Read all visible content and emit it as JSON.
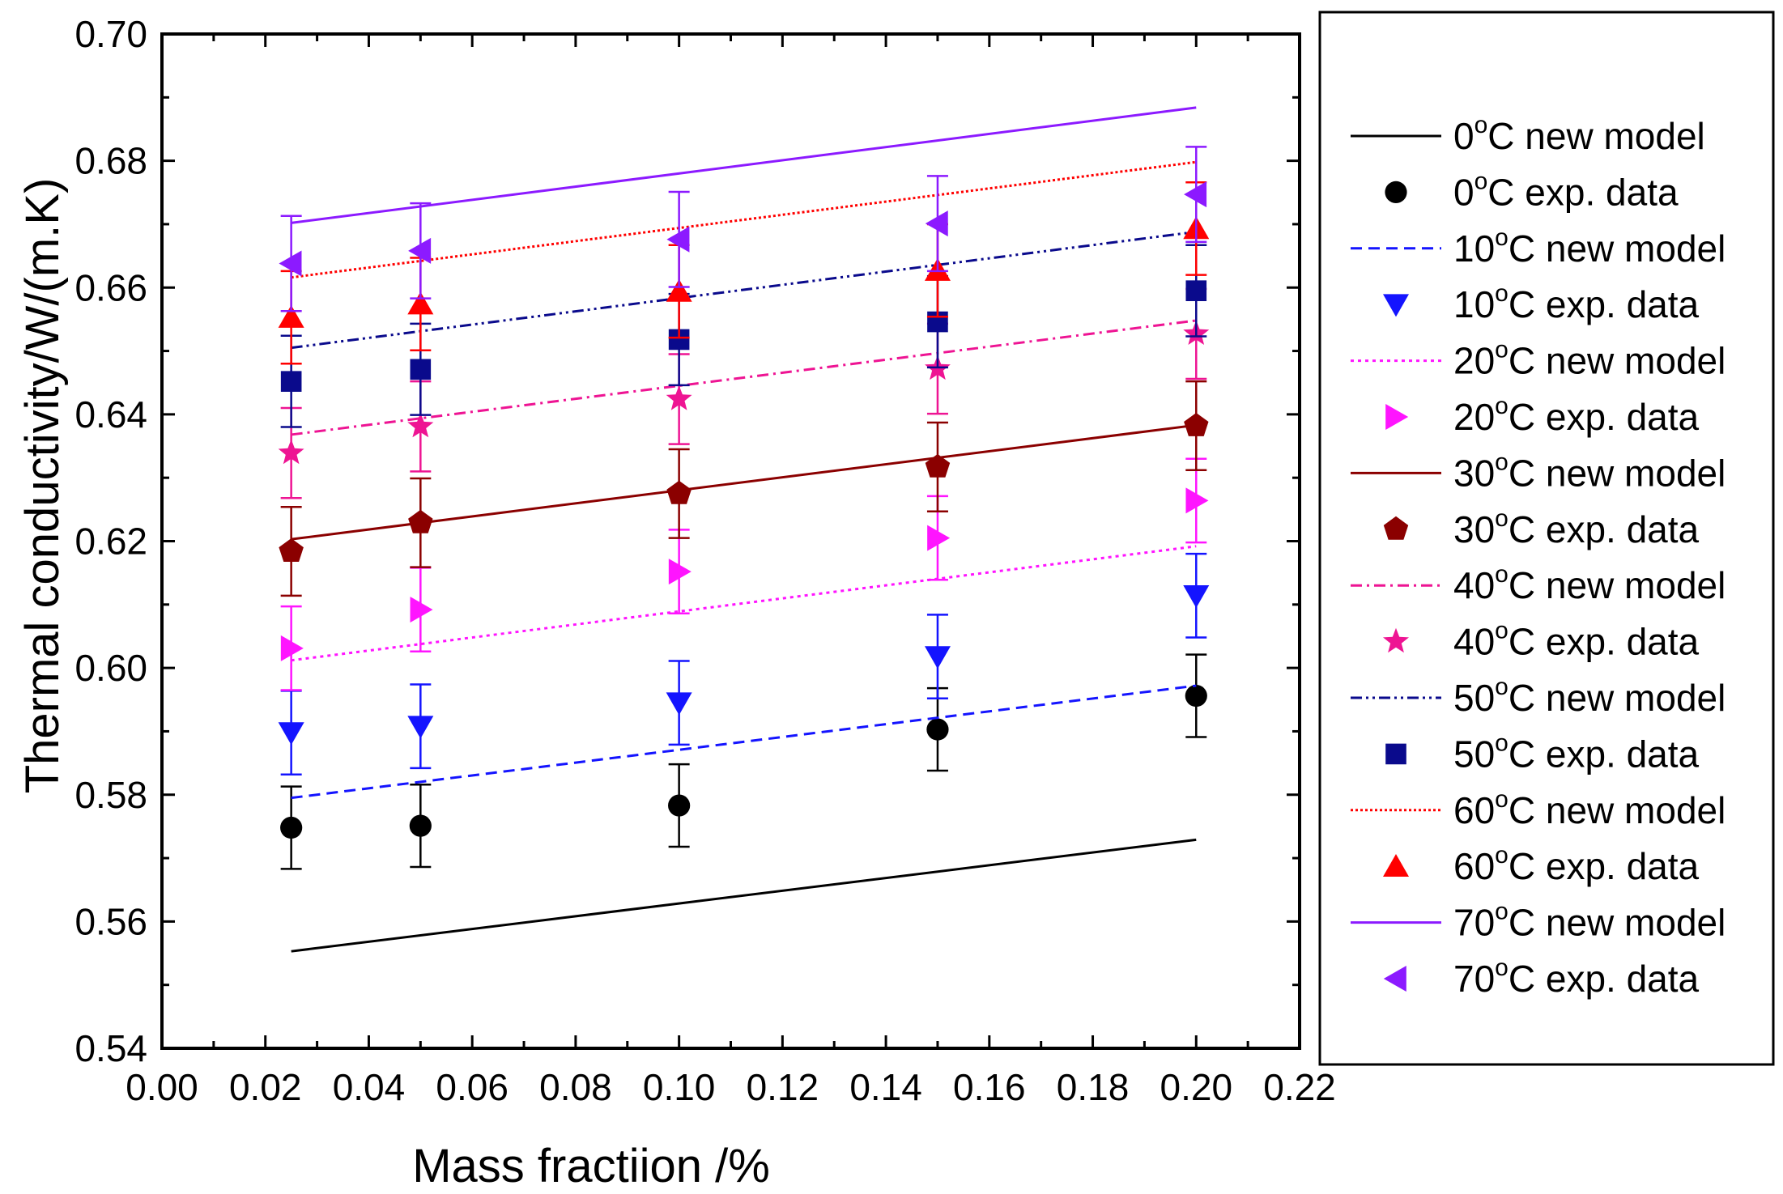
{
  "chart_data": {
    "type": "line+scatter",
    "title": "",
    "xlabel": "Mass fractiion /%",
    "ylabel": "Thermal conductivity/W/(m.K)",
    "xlim": [
      0.0,
      0.22
    ],
    "ylim": [
      0.54,
      0.7
    ],
    "xticks": [
      0.0,
      0.02,
      0.04,
      0.06,
      0.08,
      0.1,
      0.12,
      0.14,
      0.16,
      0.18,
      0.2,
      0.22
    ],
    "yticks": [
      0.54,
      0.56,
      0.58,
      0.6,
      0.62,
      0.64,
      0.66,
      0.68,
      0.7
    ],
    "xtick_labels": [
      "0.00",
      "0.02",
      "0.04",
      "0.06",
      "0.08",
      "0.10",
      "0.12",
      "0.14",
      "0.16",
      "0.18",
      "0.20",
      "0.22"
    ],
    "ytick_labels": [
      "0.54",
      "0.56",
      "0.58",
      "0.60",
      "0.62",
      "0.64",
      "0.66",
      "0.68",
      "0.70"
    ],
    "legend_position": "right, outside plot",
    "x": [
      0.025,
      0.05,
      0.1,
      0.15,
      0.2
    ],
    "series": [
      {
        "temp": "0",
        "color": "#000000",
        "marker": "circle",
        "dash": "solid",
        "model_line": [
          0.5553,
          0.5729
        ],
        "exp": [
          0.5748,
          0.5751,
          0.5783,
          0.5903,
          0.5956
        ],
        "err": 0.0065
      },
      {
        "temp": "10",
        "color": "#1414ff",
        "marker": "triangle-down",
        "dash": "dashed",
        "model_line": [
          0.5795,
          0.5972
        ],
        "exp": [
          0.5898,
          0.5908,
          0.5945,
          0.6018,
          0.6114
        ],
        "err": 0.0066
      },
      {
        "temp": "20",
        "color": "#ff14ff",
        "marker": "triangle-right",
        "dash": "dotted",
        "model_line": [
          0.6012,
          0.6192
        ],
        "exp": [
          0.6031,
          0.6092,
          0.6152,
          0.6205,
          0.6264
        ],
        "err": 0.0066
      },
      {
        "temp": "30",
        "color": "#8b0000",
        "marker": "pentagon",
        "dash": "solid",
        "model_line": [
          0.6203,
          0.6383
        ],
        "exp": [
          0.6184,
          0.6229,
          0.6275,
          0.6317,
          0.6382
        ],
        "err": 0.007
      },
      {
        "temp": "40",
        "color": "#ee1493",
        "marker": "star",
        "dash": "dashdot",
        "model_line": [
          0.6368,
          0.6548
        ],
        "exp": [
          0.6339,
          0.6381,
          0.6424,
          0.6472,
          0.6527
        ],
        "err": 0.0071
      },
      {
        "temp": "50",
        "color": "#0a0a8c",
        "marker": "square",
        "dash": "dashdotdot",
        "model_line": [
          0.6505,
          0.6688
        ],
        "exp": [
          0.6452,
          0.6471,
          0.6518,
          0.6546,
          0.6595
        ],
        "err": 0.0072
      },
      {
        "temp": "60",
        "color": "#ff0000",
        "marker": "triangle-up",
        "dash": "dense-dotted",
        "model_line": [
          0.6616,
          0.6798
        ],
        "exp": [
          0.6553,
          0.6574,
          0.6594,
          0.6627,
          0.6693
        ],
        "err": 0.0073
      },
      {
        "temp": "70",
        "color": "#8c1aff",
        "marker": "triangle-left",
        "dash": "solid",
        "model_line": [
          0.6702,
          0.6884
        ],
        "exp": [
          0.6638,
          0.6658,
          0.6676,
          0.6701,
          0.6747
        ],
        "err": 0.0075
      }
    ]
  },
  "legend": {
    "entries": [
      {
        "temp": "0",
        "sup": "o",
        "unit": "C",
        "desc": " new model",
        "kind": "line",
        "series": 0
      },
      {
        "temp": "0",
        "sup": "o",
        "unit": "C",
        "desc": " exp. data",
        "kind": "marker",
        "series": 0
      },
      {
        "temp": "10",
        "sup": "o",
        "unit": "C",
        "desc": " new model",
        "kind": "line",
        "series": 1
      },
      {
        "temp": "10",
        "sup": "o",
        "unit": "C",
        "desc": " exp. data",
        "kind": "marker",
        "series": 1
      },
      {
        "temp": "20",
        "sup": "o",
        "unit": "C",
        "desc": " new model",
        "kind": "line",
        "series": 2
      },
      {
        "temp": "20",
        "sup": "o",
        "unit": "C",
        "desc": " exp. data",
        "kind": "marker",
        "series": 2
      },
      {
        "temp": "30",
        "sup": "o",
        "unit": "C",
        "desc": " new model",
        "kind": "line",
        "series": 3
      },
      {
        "temp": "30",
        "sup": "o",
        "unit": "C",
        "desc": " exp. data",
        "kind": "marker",
        "series": 3
      },
      {
        "temp": "40",
        "sup": "o",
        "unit": "C",
        "desc": " new model",
        "kind": "line",
        "series": 4
      },
      {
        "temp": "40",
        "sup": "o",
        "unit": "C",
        "desc": " exp. data",
        "kind": "marker",
        "series": 4
      },
      {
        "temp": "50",
        "sup": "o",
        "unit": "C",
        "desc": " new model",
        "kind": "line",
        "series": 5
      },
      {
        "temp": "50",
        "sup": "o",
        "unit": "C",
        "desc": " exp. data",
        "kind": "marker",
        "series": 5
      },
      {
        "temp": "60",
        "sup": "o",
        "unit": "C",
        "desc": " new model",
        "kind": "line",
        "series": 6
      },
      {
        "temp": "60",
        "sup": "o",
        "unit": "C",
        "desc": " exp. data",
        "kind": "marker",
        "series": 6
      },
      {
        "temp": "70",
        "sup": "o",
        "unit": "C",
        "desc": " new model",
        "kind": "line",
        "series": 7
      },
      {
        "temp": "70",
        "sup": "o",
        "unit": "C",
        "desc": " exp. data",
        "kind": "marker",
        "series": 7
      }
    ]
  }
}
